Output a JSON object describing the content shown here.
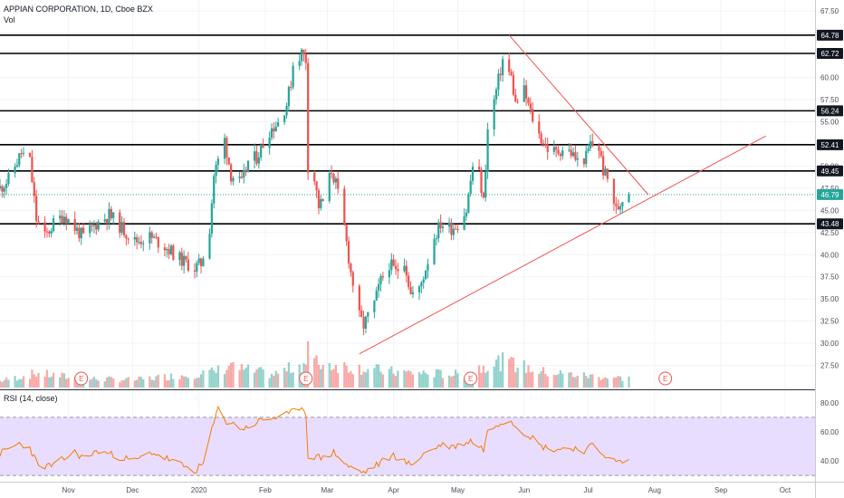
{
  "chart_data": {
    "type": "candlestick",
    "title": "APPIAN CORPORATION, 1D, Cboe BZX",
    "volume_label": "Vol",
    "rsi_label": "RSI (14, close)",
    "colors": {
      "up": "#26a69a",
      "down": "#ef5350",
      "rsi": "#f57c00",
      "rsi_band": "#e9ddff",
      "trend": "#ef5350",
      "last": "#26a69a"
    },
    "price_axis": {
      "min": 25.0,
      "max": 68.75,
      "ticks": [
        "67.50",
        "65.00",
        "62.50",
        "60.00",
        "57.50",
        "55.00",
        "52.50",
        "50.00",
        "47.50",
        "45.00",
        "42.50",
        "40.00",
        "37.50",
        "35.00",
        "32.50",
        "30.00",
        "27.50"
      ]
    },
    "rsi_axis": {
      "min": 27,
      "max": 88,
      "ticks": [
        "80.00",
        "60.00",
        "40.00"
      ],
      "upper_band": 70,
      "lower_band": 30
    },
    "x_axis": {
      "start": "2019-09-30",
      "end": "2020-10-15",
      "labels": [
        {
          "date": "2019-11-01",
          "label": "Nov"
        },
        {
          "date": "2019-12-01",
          "label": "Dec"
        },
        {
          "date": "2020-01-01",
          "label": "2020"
        },
        {
          "date": "2020-02-01",
          "label": "Feb"
        },
        {
          "date": "2020-03-01",
          "label": "Mar"
        },
        {
          "date": "2020-04-01",
          "label": "Apr"
        },
        {
          "date": "2020-05-01",
          "label": "May"
        },
        {
          "date": "2020-06-01",
          "label": "Jun"
        },
        {
          "date": "2020-07-01",
          "label": "Jul"
        },
        {
          "date": "2020-08-01",
          "label": "Aug"
        },
        {
          "date": "2020-09-01",
          "label": "Sep"
        },
        {
          "date": "2020-10-01",
          "label": "Oct"
        }
      ]
    },
    "horizontal_levels": [
      {
        "value": 64.78,
        "label": "64.78"
      },
      {
        "value": 62.72,
        "label": "62.72"
      },
      {
        "value": 56.24,
        "label": "56.24"
      },
      {
        "value": 52.41,
        "label": "52.41"
      },
      {
        "value": 49.45,
        "label": "49.45"
      },
      {
        "value": 43.48,
        "label": "43.48"
      }
    ],
    "last_price": {
      "value": 46.79,
      "label": "46.79"
    },
    "trendlines": [
      {
        "from": {
          "date": "2020-03-16",
          "value": 28.8
        },
        "to": {
          "date": "2020-09-22",
          "value": 53.4
        }
      },
      {
        "from": {
          "date": "2020-05-25",
          "value": 64.78
        },
        "to": {
          "date": "2020-07-29",
          "value": 46.8
        }
      }
    ],
    "earnings_markers": [
      {
        "date": "2019-11-07",
        "label": "E"
      },
      {
        "date": "2020-02-20",
        "label": "E"
      },
      {
        "date": "2020-05-07",
        "label": "E"
      },
      {
        "date": "2020-08-06",
        "label": "E"
      }
    ],
    "price_anchors": [
      [
        "2019-09-30",
        47.5
      ],
      [
        "2019-10-04",
        48.5
      ],
      [
        "2019-10-10",
        51.5
      ],
      [
        "2019-10-14",
        50.5
      ],
      [
        "2019-10-17",
        44.0
      ],
      [
        "2019-10-21",
        42.0
      ],
      [
        "2019-10-25",
        43.5
      ],
      [
        "2019-10-30",
        44.5
      ],
      [
        "2019-11-04",
        43.0
      ],
      [
        "2019-11-08",
        42.0
      ],
      [
        "2019-11-14",
        43.5
      ],
      [
        "2019-11-20",
        44.5
      ],
      [
        "2019-11-26",
        43.0
      ],
      [
        "2019-12-02",
        41.5
      ],
      [
        "2019-12-09",
        42.0
      ],
      [
        "2019-12-16",
        41.0
      ],
      [
        "2019-12-23",
        39.5
      ],
      [
        "2019-12-30",
        38.5
      ],
      [
        "2020-01-02",
        39.0
      ],
      [
        "2020-01-06",
        43.0
      ],
      [
        "2020-01-08",
        49.0
      ],
      [
        "2020-01-13",
        53.0
      ],
      [
        "2020-01-16",
        49.0
      ],
      [
        "2020-01-21",
        48.0
      ],
      [
        "2020-01-24",
        50.5
      ],
      [
        "2020-01-28",
        51.0
      ],
      [
        "2020-02-03",
        54.0
      ],
      [
        "2020-02-07",
        55.0
      ],
      [
        "2020-02-11",
        57.0
      ],
      [
        "2020-02-13",
        59.5
      ],
      [
        "2020-02-14",
        61.5
      ],
      [
        "2020-02-18",
        62.8
      ],
      [
        "2020-02-20",
        62.0
      ],
      [
        "2020-02-21",
        50.0
      ],
      [
        "2020-02-24",
        48.5
      ],
      [
        "2020-02-26",
        45.5
      ],
      [
        "2020-02-28",
        46.0
      ],
      [
        "2020-03-03",
        49.5
      ],
      [
        "2020-03-05",
        48.0
      ],
      [
        "2020-03-09",
        43.0
      ],
      [
        "2020-03-12",
        38.0
      ],
      [
        "2020-03-16",
        33.0
      ],
      [
        "2020-03-18",
        32.0
      ],
      [
        "2020-03-23",
        34.5
      ],
      [
        "2020-03-26",
        37.0
      ],
      [
        "2020-03-30",
        39.0
      ],
      [
        "2020-04-02",
        38.0
      ],
      [
        "2020-04-06",
        39.5
      ],
      [
        "2020-04-09",
        35.5
      ],
      [
        "2020-04-13",
        36.0
      ],
      [
        "2020-04-16",
        38.5
      ],
      [
        "2020-04-20",
        42.0
      ],
      [
        "2020-04-23",
        43.5
      ],
      [
        "2020-04-28",
        43.0
      ],
      [
        "2020-05-01",
        43.5
      ],
      [
        "2020-05-05",
        45.0
      ],
      [
        "2020-05-08",
        50.0
      ],
      [
        "2020-05-11",
        49.0
      ],
      [
        "2020-05-13",
        46.0
      ],
      [
        "2020-05-15",
        54.0
      ],
      [
        "2020-05-19",
        58.5
      ],
      [
        "2020-05-22",
        62.0
      ],
      [
        "2020-05-26",
        60.0
      ],
      [
        "2020-05-28",
        57.0
      ],
      [
        "2020-06-01",
        58.5
      ],
      [
        "2020-06-04",
        56.0
      ],
      [
        "2020-06-08",
        53.5
      ],
      [
        "2020-06-12",
        52.0
      ],
      [
        "2020-06-16",
        51.5
      ],
      [
        "2020-06-19",
        52.0
      ],
      [
        "2020-06-23",
        51.5
      ],
      [
        "2020-06-26",
        50.5
      ],
      [
        "2020-06-30",
        51.0
      ],
      [
        "2020-07-02",
        52.5
      ],
      [
        "2020-07-06",
        52.0
      ],
      [
        "2020-07-08",
        49.5
      ],
      [
        "2020-07-10",
        48.5
      ],
      [
        "2020-07-13",
        46.0
      ],
      [
        "2020-07-14",
        45.0
      ],
      [
        "2020-07-16",
        45.8
      ],
      [
        "2020-07-17",
        46.5
      ],
      [
        "2020-07-20",
        46.79
      ]
    ],
    "rsi_anchors": [
      [
        "2019-09-30",
        45
      ],
      [
        "2019-10-09",
        52
      ],
      [
        "2019-10-14",
        49
      ],
      [
        "2019-10-18",
        36
      ],
      [
        "2019-10-25",
        37
      ],
      [
        "2019-11-04",
        46
      ],
      [
        "2019-11-08",
        42
      ],
      [
        "2019-11-15",
        47
      ],
      [
        "2019-11-22",
        44
      ],
      [
        "2019-12-02",
        40
      ],
      [
        "2019-12-10",
        46
      ],
      [
        "2019-12-18",
        41
      ],
      [
        "2019-12-30",
        33
      ],
      [
        "2020-01-03",
        38
      ],
      [
        "2020-01-06",
        56
      ],
      [
        "2020-01-10",
        76
      ],
      [
        "2020-01-14",
        67
      ],
      [
        "2020-01-22",
        62
      ],
      [
        "2020-01-30",
        68
      ],
      [
        "2020-02-06",
        70
      ],
      [
        "2020-02-12",
        72
      ],
      [
        "2020-02-18",
        78
      ],
      [
        "2020-02-20",
        72
      ],
      [
        "2020-02-21",
        44
      ],
      [
        "2020-02-28",
        42
      ],
      [
        "2020-03-04",
        46
      ],
      [
        "2020-03-11",
        36
      ],
      [
        "2020-03-18",
        32
      ],
      [
        "2020-03-25",
        38
      ],
      [
        "2020-04-01",
        44
      ],
      [
        "2020-04-09",
        37
      ],
      [
        "2020-04-15",
        45
      ],
      [
        "2020-04-23",
        51
      ],
      [
        "2020-04-30",
        50
      ],
      [
        "2020-05-07",
        54
      ],
      [
        "2020-05-13",
        48
      ],
      [
        "2020-05-15",
        60
      ],
      [
        "2020-05-20",
        66
      ],
      [
        "2020-05-25",
        69
      ],
      [
        "2020-05-29",
        63
      ],
      [
        "2020-06-04",
        57
      ],
      [
        "2020-06-09",
        50
      ],
      [
        "2020-06-16",
        48
      ],
      [
        "2020-06-24",
        49
      ],
      [
        "2020-06-30",
        47
      ],
      [
        "2020-07-03",
        51
      ],
      [
        "2020-07-08",
        45
      ],
      [
        "2020-07-14",
        39
      ],
      [
        "2020-07-20",
        40
      ]
    ],
    "volume_anchors": [
      [
        "2019-09-30",
        0.25
      ],
      [
        "2019-10-17",
        0.55
      ],
      [
        "2019-11-07",
        0.35
      ],
      [
        "2019-12-02",
        0.3
      ],
      [
        "2020-01-08",
        0.6
      ],
      [
        "2020-01-14",
        0.8
      ],
      [
        "2020-02-05",
        0.5
      ],
      [
        "2020-02-21",
        1.0
      ],
      [
        "2020-03-12",
        0.8
      ],
      [
        "2020-04-01",
        0.6
      ],
      [
        "2020-05-05",
        0.5
      ],
      [
        "2020-05-14",
        0.9
      ],
      [
        "2020-05-22",
        1.0
      ],
      [
        "2020-06-10",
        0.6
      ],
      [
        "2020-07-01",
        0.45
      ],
      [
        "2020-07-20",
        0.35
      ]
    ],
    "volume_spikes": [
      {
        "date": "2020-02-21",
        "level": 1.7
      },
      {
        "date": "2020-05-27",
        "level": 1.1
      },
      {
        "date": "2020-01-16",
        "level": 0.9
      }
    ],
    "grid": true,
    "legend": "none"
  }
}
